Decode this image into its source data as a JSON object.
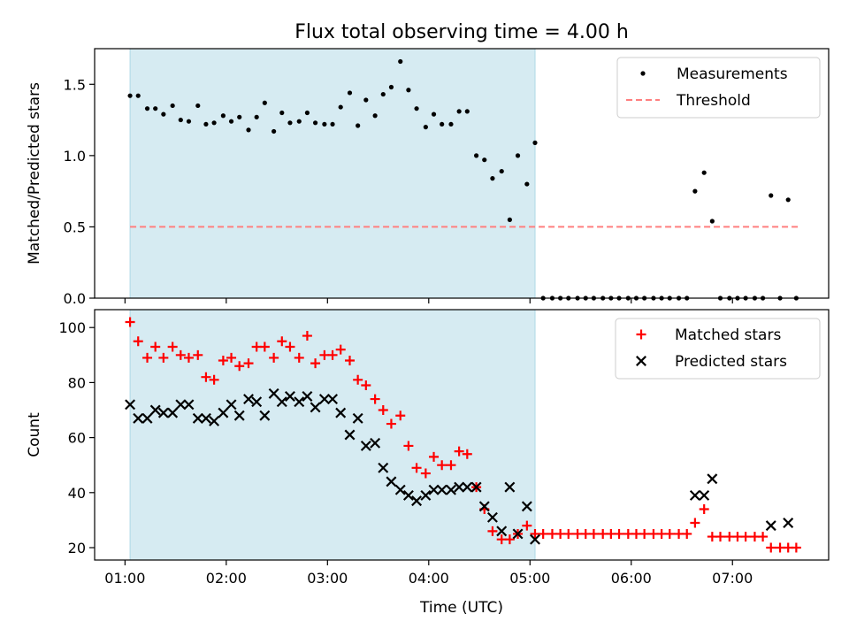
{
  "chart_data": [
    {
      "type": "scatter",
      "title": "Flux total observing time = 4.00 h",
      "xlabel": "",
      "ylabel": "Matched/Predicted stars",
      "ylim": [
        0,
        1.75
      ],
      "xlim": [
        0.7,
        7.95
      ],
      "yticks": [
        0.0,
        0.5,
        1.0,
        1.5
      ],
      "ytick_labels": [
        "0.0",
        "0.5",
        "1.0",
        "1.5"
      ],
      "xticks": [
        1,
        2,
        3,
        4,
        5,
        6,
        7
      ],
      "shaded_x": [
        1.05,
        5.05
      ],
      "legend": [
        "Measurements",
        "Threshold"
      ],
      "legend_position": "upper right",
      "threshold": {
        "name": "Threshold",
        "value": 0.5,
        "x": [
          1.05,
          7.65
        ],
        "color": "#ff7f7f"
      },
      "series": [
        {
          "name": "Measurements",
          "color": "#000000",
          "x": [
            1.05,
            1.13,
            1.22,
            1.3,
            1.38,
            1.47,
            1.55,
            1.63,
            1.72,
            1.8,
            1.88,
            1.97,
            2.05,
            2.13,
            2.22,
            2.3,
            2.38,
            2.47,
            2.55,
            2.63,
            2.72,
            2.8,
            2.88,
            2.97,
            3.05,
            3.13,
            3.22,
            3.3,
            3.38,
            3.47,
            3.55,
            3.63,
            3.72,
            3.8,
            3.88,
            3.97,
            4.05,
            4.13,
            4.22,
            4.3,
            4.38,
            4.47,
            4.55,
            4.63,
            4.72,
            4.8,
            4.88,
            4.97,
            5.05,
            5.13,
            5.22,
            5.3,
            5.38,
            5.47,
            5.55,
            5.63,
            5.72,
            5.8,
            5.88,
            5.97,
            6.05,
            6.13,
            6.22,
            6.3,
            6.38,
            6.47,
            6.55,
            6.63,
            6.72,
            6.8,
            6.88,
            6.97,
            7.05,
            7.13,
            7.22,
            7.3,
            7.38,
            7.47,
            7.55,
            7.63
          ],
          "y": [
            1.42,
            1.42,
            1.33,
            1.33,
            1.29,
            1.35,
            1.25,
            1.24,
            1.35,
            1.22,
            1.23,
            1.28,
            1.24,
            1.27,
            1.18,
            1.27,
            1.37,
            1.17,
            1.3,
            1.23,
            1.24,
            1.3,
            1.23,
            1.22,
            1.22,
            1.34,
            1.44,
            1.21,
            1.39,
            1.28,
            1.43,
            1.48,
            1.66,
            1.46,
            1.33,
            1.2,
            1.29,
            1.22,
            1.22,
            1.31,
            1.31,
            1.0,
            0.97,
            0.84,
            0.89,
            0.55,
            1.0,
            0.8,
            1.09,
            0.0,
            0.0,
            0.0,
            0.0,
            0.0,
            0.0,
            0.0,
            0.0,
            0.0,
            0.0,
            0.0,
            0.0,
            0.0,
            0.0,
            0.0,
            0.0,
            0.0,
            0.0,
            0.75,
            0.88,
            0.54,
            0.0,
            0.0,
            0.0,
            0.0,
            0.0,
            0.0,
            0.72,
            0.0,
            0.69,
            0.0
          ]
        }
      ]
    },
    {
      "type": "scatter",
      "title": "",
      "xlabel": "Time (UTC)",
      "ylabel": "Count",
      "ylim": [
        15.5,
        106.5
      ],
      "xlim": [
        0.7,
        7.95
      ],
      "yticks": [
        20,
        40,
        60,
        80,
        100
      ],
      "ytick_labels": [
        "20",
        "40",
        "60",
        "80",
        "100"
      ],
      "xticks": [
        1,
        2,
        3,
        4,
        5,
        6,
        7
      ],
      "xtick_labels": [
        "01:00",
        "02:00",
        "03:00",
        "04:00",
        "05:00",
        "06:00",
        "07:00"
      ],
      "shaded_x": [
        1.05,
        5.05
      ],
      "legend": [
        "Matched stars",
        "Predicted stars"
      ],
      "legend_position": "upper right",
      "series": [
        {
          "name": "Matched stars",
          "marker": "plus",
          "color": "#ff0000",
          "x": [
            1.05,
            1.13,
            1.22,
            1.3,
            1.38,
            1.47,
            1.55,
            1.63,
            1.72,
            1.8,
            1.88,
            1.97,
            2.05,
            2.13,
            2.22,
            2.3,
            2.38,
            2.47,
            2.55,
            2.63,
            2.72,
            2.8,
            2.88,
            2.97,
            3.05,
            3.13,
            3.22,
            3.3,
            3.38,
            3.47,
            3.55,
            3.63,
            3.72,
            3.8,
            3.88,
            3.97,
            4.05,
            4.13,
            4.22,
            4.3,
            4.38,
            4.47,
            4.55,
            4.63,
            4.72,
            4.8,
            4.88,
            4.97,
            5.05,
            5.13,
            5.22,
            5.3,
            5.38,
            5.47,
            5.55,
            5.63,
            5.72,
            5.8,
            5.88,
            5.97,
            6.05,
            6.13,
            6.22,
            6.3,
            6.38,
            6.47,
            6.55,
            6.63,
            6.72,
            6.8,
            6.88,
            6.97,
            7.05,
            7.13,
            7.22,
            7.3,
            7.38,
            7.47,
            7.55,
            7.63
          ],
          "y": [
            102,
            95,
            89,
            93,
            89,
            93,
            90,
            89,
            90,
            82,
            81,
            88,
            89,
            86,
            87,
            93,
            93,
            89,
            95,
            93,
            89,
            97,
            87,
            90,
            90,
            92,
            88,
            81,
            79,
            74,
            70,
            65,
            68,
            57,
            49,
            47,
            53,
            50,
            50,
            55,
            54,
            42,
            34,
            26,
            23,
            23,
            25,
            28,
            25,
            25,
            25,
            25,
            25,
            25,
            25,
            25,
            25,
            25,
            25,
            25,
            25,
            25,
            25,
            25,
            25,
            25,
            25,
            29,
            34,
            24,
            24,
            24,
            24,
            24,
            24,
            24,
            20,
            20,
            20,
            20
          ]
        },
        {
          "name": "Predicted stars",
          "marker": "x",
          "color": "#000000",
          "x": [
            1.05,
            1.13,
            1.22,
            1.3,
            1.38,
            1.47,
            1.55,
            1.63,
            1.72,
            1.8,
            1.88,
            1.97,
            2.05,
            2.13,
            2.22,
            2.3,
            2.38,
            2.47,
            2.55,
            2.63,
            2.72,
            2.8,
            2.88,
            2.97,
            3.05,
            3.13,
            3.22,
            3.3,
            3.38,
            3.47,
            3.55,
            3.63,
            3.72,
            3.8,
            3.88,
            3.97,
            4.05,
            4.13,
            4.22,
            4.3,
            4.38,
            4.47,
            4.55,
            4.63,
            4.72,
            4.8,
            4.88,
            4.97,
            5.05,
            6.63,
            6.72,
            6.8,
            7.38,
            7.55
          ],
          "y": [
            72,
            67,
            67,
            70,
            69,
            69,
            72,
            72,
            67,
            67,
            66,
            69,
            72,
            68,
            74,
            73,
            68,
            76,
            73,
            75,
            73,
            75,
            71,
            74,
            74,
            69,
            61,
            67,
            57,
            58,
            49,
            44,
            41,
            39,
            37,
            39,
            41,
            41,
            41,
            42,
            42,
            42,
            35,
            31,
            26,
            42,
            25,
            35,
            23,
            39,
            39,
            45,
            28,
            29
          ]
        }
      ]
    }
  ]
}
